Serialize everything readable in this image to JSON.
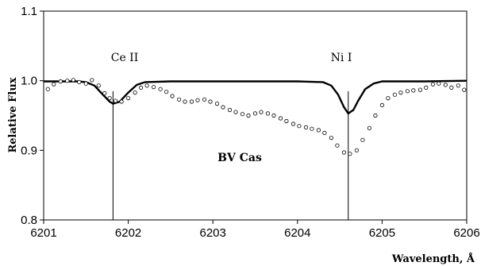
{
  "chart_data": {
    "type": "line",
    "title": "",
    "xlabel": "Wavelength, Å",
    "ylabel": "Relative Flux",
    "xlim": [
      6201,
      6206
    ],
    "ylim": [
      0.8,
      1.1
    ],
    "x_ticks": [
      "6201",
      "6202",
      "6203",
      "6204",
      "6205",
      "6206"
    ],
    "y_ticks": [
      "0.8",
      "0.9",
      "1.0",
      "1.1"
    ],
    "grid": false,
    "legend": "none",
    "annotations": [
      {
        "text": "Ce II",
        "x": 6201.82
      },
      {
        "text": "Ni I",
        "x": 6204.6
      }
    ],
    "center_label": "BV Cas",
    "series": [
      {
        "style": "solid-line",
        "color": "#000000",
        "points": [
          [
            6201.0,
            0.999
          ],
          [
            6201.2,
            0.999
          ],
          [
            6201.4,
            0.999
          ],
          [
            6201.5,
            0.998
          ],
          [
            6201.6,
            0.993
          ],
          [
            6201.7,
            0.98
          ],
          [
            6201.78,
            0.97
          ],
          [
            6201.82,
            0.967
          ],
          [
            6201.9,
            0.97
          ],
          [
            6202.0,
            0.983
          ],
          [
            6202.1,
            0.994
          ],
          [
            6202.2,
            0.998
          ],
          [
            6202.5,
            0.999
          ],
          [
            6203.0,
            0.999
          ],
          [
            6203.5,
            0.999
          ],
          [
            6204.0,
            0.999
          ],
          [
            6204.3,
            0.998
          ],
          [
            6204.4,
            0.993
          ],
          [
            6204.48,
            0.98
          ],
          [
            6204.55,
            0.962
          ],
          [
            6204.6,
            0.953
          ],
          [
            6204.66,
            0.958
          ],
          [
            6204.72,
            0.972
          ],
          [
            6204.8,
            0.988
          ],
          [
            6204.9,
            0.996
          ],
          [
            6205.0,
            0.999
          ],
          [
            6205.5,
            0.999
          ],
          [
            6206.0,
            1.0
          ]
        ]
      },
      {
        "style": "open-circles",
        "color": "#000000",
        "points": [
          [
            6201.05,
            0.988
          ],
          [
            6201.12,
            0.995
          ],
          [
            6201.2,
            0.999
          ],
          [
            6201.28,
            1.0
          ],
          [
            6201.35,
            1.001
          ],
          [
            6201.42,
            0.998
          ],
          [
            6201.5,
            0.996
          ],
          [
            6201.57,
            1.001
          ],
          [
            6201.65,
            0.993
          ],
          [
            6201.72,
            0.982
          ],
          [
            6201.78,
            0.975
          ],
          [
            6201.85,
            0.971
          ],
          [
            6201.92,
            0.97
          ],
          [
            6202.0,
            0.975
          ],
          [
            6202.08,
            0.983
          ],
          [
            6202.15,
            0.99
          ],
          [
            6202.22,
            0.993
          ],
          [
            6202.3,
            0.991
          ],
          [
            6202.38,
            0.988
          ],
          [
            6202.45,
            0.984
          ],
          [
            6202.52,
            0.978
          ],
          [
            6202.6,
            0.973
          ],
          [
            6202.67,
            0.97
          ],
          [
            6202.75,
            0.97
          ],
          [
            6202.82,
            0.972
          ],
          [
            6202.9,
            0.973
          ],
          [
            6202.97,
            0.97
          ],
          [
            6203.05,
            0.967
          ],
          [
            6203.12,
            0.962
          ],
          [
            6203.2,
            0.958
          ],
          [
            6203.27,
            0.955
          ],
          [
            6203.35,
            0.952
          ],
          [
            6203.42,
            0.95
          ],
          [
            6203.5,
            0.953
          ],
          [
            6203.57,
            0.955
          ],
          [
            6203.65,
            0.953
          ],
          [
            6203.72,
            0.95
          ],
          [
            6203.8,
            0.946
          ],
          [
            6203.87,
            0.942
          ],
          [
            6203.95,
            0.938
          ],
          [
            6204.02,
            0.935
          ],
          [
            6204.1,
            0.933
          ],
          [
            6204.17,
            0.931
          ],
          [
            6204.25,
            0.929
          ],
          [
            6204.32,
            0.925
          ],
          [
            6204.4,
            0.918
          ],
          [
            6204.47,
            0.907
          ],
          [
            6204.55,
            0.897
          ],
          [
            6204.62,
            0.895
          ],
          [
            6204.7,
            0.9
          ],
          [
            6204.77,
            0.915
          ],
          [
            6204.85,
            0.932
          ],
          [
            6204.92,
            0.95
          ],
          [
            6205.0,
            0.965
          ],
          [
            6205.07,
            0.975
          ],
          [
            6205.15,
            0.98
          ],
          [
            6205.22,
            0.983
          ],
          [
            6205.3,
            0.985
          ],
          [
            6205.37,
            0.986
          ],
          [
            6205.45,
            0.987
          ],
          [
            6205.52,
            0.99
          ],
          [
            6205.6,
            0.995
          ],
          [
            6205.67,
            0.996
          ],
          [
            6205.75,
            0.994
          ],
          [
            6205.82,
            0.99
          ],
          [
            6205.9,
            0.993
          ],
          [
            6205.97,
            0.987
          ]
        ]
      }
    ]
  }
}
